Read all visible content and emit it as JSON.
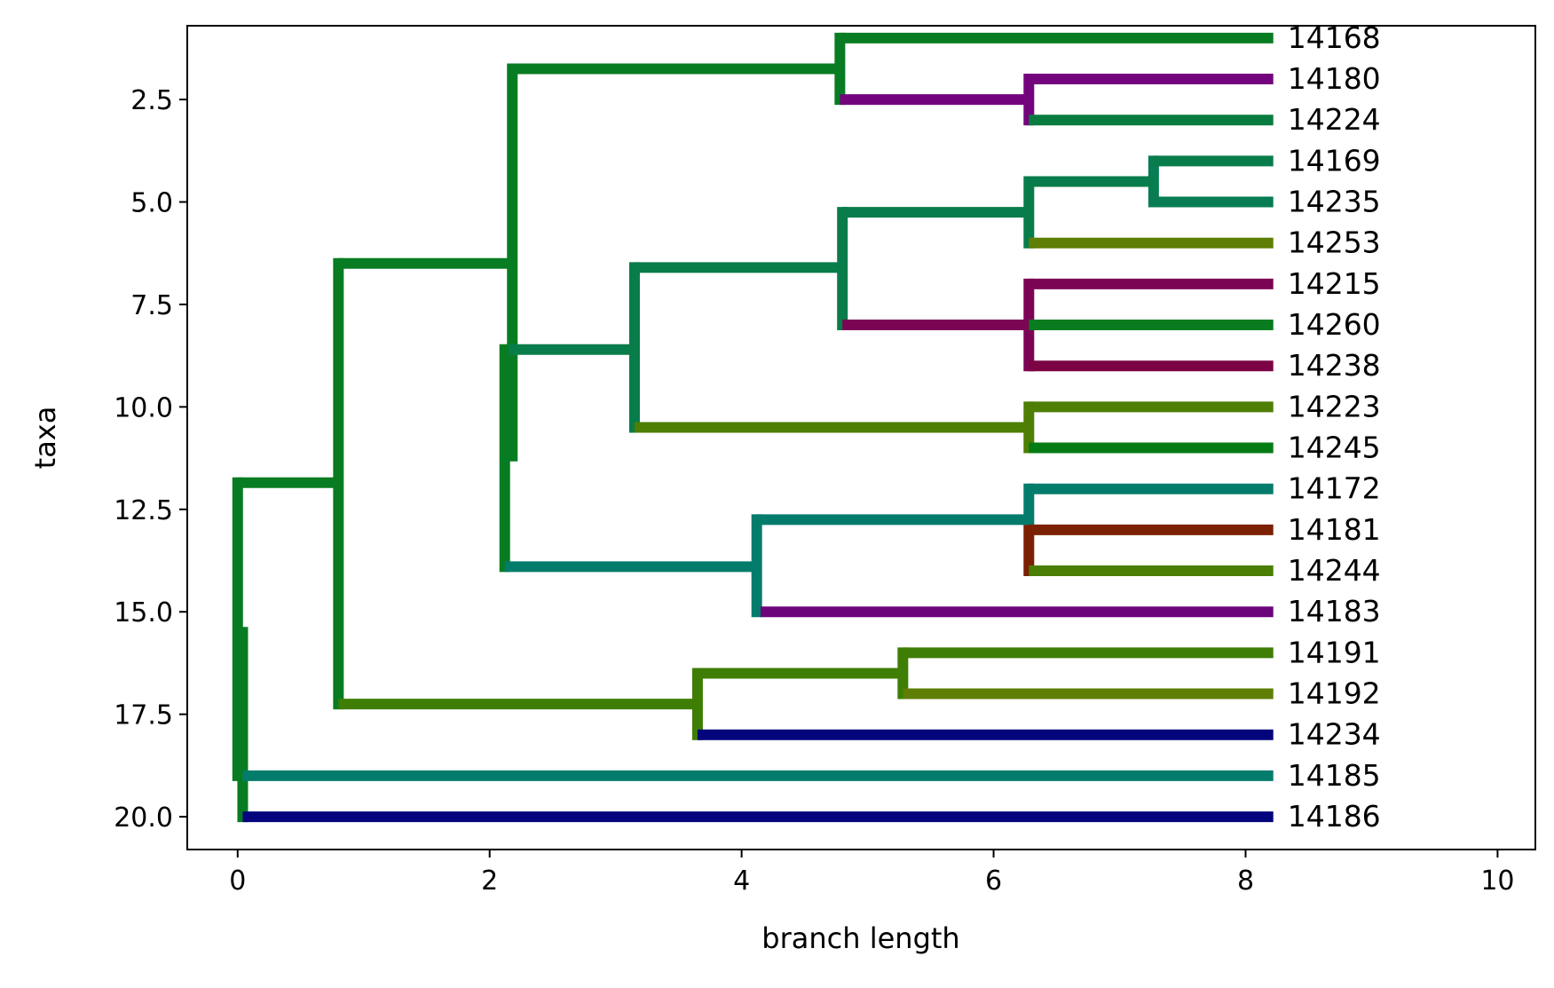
{
  "chart_data": {
    "type": "dendrogram",
    "xlabel": "branch length",
    "ylabel": "taxa",
    "xlim": [
      -0.4,
      10.3
    ],
    "ylim": [
      0.7,
      20.8
    ],
    "y_inverted": true,
    "x_ticks": [
      "0",
      "2",
      "4",
      "6",
      "8",
      "10"
    ],
    "y_ticks": [
      "2.5",
      "5.0",
      "7.5",
      "10.0",
      "12.5",
      "15.0",
      "17.5",
      "20.0"
    ],
    "x_tick_values": [
      0,
      2,
      4,
      6,
      8,
      10
    ],
    "y_tick_values": [
      2.5,
      5.0,
      7.5,
      10.0,
      12.5,
      15.0,
      17.5,
      20.0
    ],
    "leaves": [
      {
        "label": "14168",
        "y": 1
      },
      {
        "label": "14180",
        "y": 2
      },
      {
        "label": "14224",
        "y": 3
      },
      {
        "label": "14169",
        "y": 4
      },
      {
        "label": "14235",
        "y": 5
      },
      {
        "label": "14253",
        "y": 6
      },
      {
        "label": "14215",
        "y": 7
      },
      {
        "label": "14260",
        "y": 8
      },
      {
        "label": "14238",
        "y": 9
      },
      {
        "label": "14223",
        "y": 10
      },
      {
        "label": "14245",
        "y": 11
      },
      {
        "label": "14172",
        "y": 12
      },
      {
        "label": "14181",
        "y": 13
      },
      {
        "label": "14244",
        "y": 14
      },
      {
        "label": "14183",
        "y": 15
      },
      {
        "label": "14191",
        "y": 16
      },
      {
        "label": "14192",
        "y": 17
      },
      {
        "label": "14234",
        "y": 18
      },
      {
        "label": "14185",
        "y": 19
      },
      {
        "label": "14186",
        "y": 20
      }
    ],
    "branches": [
      {
        "x1": 4.78,
        "x2": 8.22,
        "y": 1,
        "color": "#087c22"
      },
      {
        "x1": 6.28,
        "x2": 8.22,
        "y": 2,
        "color": "#74047e"
      },
      {
        "x1": 6.28,
        "x2": 8.22,
        "y": 3,
        "color": "#087c3e"
      },
      {
        "x1": 7.27,
        "x2": 8.22,
        "y": 4,
        "color": "#087c4a"
      },
      {
        "x1": 7.27,
        "x2": 8.22,
        "y": 5,
        "color": "#087c52"
      },
      {
        "x1": 6.28,
        "x2": 8.22,
        "y": 6,
        "color": "#5e7e04"
      },
      {
        "x1": 6.28,
        "x2": 8.22,
        "y": 7,
        "color": "#7c0454"
      },
      {
        "x1": 6.28,
        "x2": 8.22,
        "y": 8,
        "color": "#087c1e"
      },
      {
        "x1": 6.28,
        "x2": 8.22,
        "y": 9,
        "color": "#7c0444"
      },
      {
        "x1": 6.28,
        "x2": 8.22,
        "y": 10,
        "color": "#4e7e04"
      },
      {
        "x1": 6.28,
        "x2": 8.22,
        "y": 11,
        "color": "#047c14"
      },
      {
        "x1": 6.28,
        "x2": 8.22,
        "y": 12,
        "color": "#047c6c"
      },
      {
        "x1": 6.28,
        "x2": 8.22,
        "y": 13,
        "color": "#7c2004"
      },
      {
        "x1": 6.28,
        "x2": 8.22,
        "y": 14,
        "color": "#4a7e04"
      },
      {
        "x1": 4.15,
        "x2": 8.22,
        "y": 15,
        "color": "#6c047c"
      },
      {
        "x1": 5.28,
        "x2": 8.22,
        "y": 16,
        "color": "#3e7e04"
      },
      {
        "x1": 5.28,
        "x2": 8.22,
        "y": 17,
        "color": "#5e7e04"
      },
      {
        "x1": 3.65,
        "x2": 8.22,
        "y": 18,
        "color": "#04047c"
      },
      {
        "x1": 0.04,
        "x2": 8.22,
        "y": 19,
        "color": "#047c6c"
      },
      {
        "x1": 0.04,
        "x2": 8.22,
        "y": 20,
        "color": "#04047c"
      },
      {
        "x1": 4.78,
        "x2": 6.28,
        "y": 2.5,
        "color": "#74047e"
      },
      {
        "x1": 6.28,
        "x2": 7.27,
        "y": 4.5,
        "color": "#087c4a"
      },
      {
        "x1": 4.8,
        "x2": 6.28,
        "y": 5.25,
        "color": "#087c4a"
      },
      {
        "x1": 4.8,
        "x2": 6.28,
        "y": 8.0,
        "color": "#7c0454"
      },
      {
        "x1": 3.15,
        "x2": 4.8,
        "y": 6.6,
        "color": "#087c4a"
      },
      {
        "x1": 3.15,
        "x2": 6.28,
        "y": 10.5,
        "color": "#4e7e04"
      },
      {
        "x1": 2.15,
        "x2": 3.15,
        "y": 8.6,
        "color": "#087c4a"
      },
      {
        "x1": 4.12,
        "x2": 6.28,
        "y": 12.75,
        "color": "#047c6c"
      },
      {
        "x1": 2.12,
        "x2": 4.12,
        "y": 13.9,
        "color": "#047c6c"
      },
      {
        "x1": 5.28,
        "x2": 5.28,
        "y": 16.5,
        "color": "#3e7e04"
      },
      {
        "x1": 3.65,
        "x2": 5.28,
        "y": 16.5,
        "color": "#3e7e04"
      },
      {
        "x1": 0.8,
        "x2": 3.65,
        "y": 17.25,
        "color": "#3e7e04"
      },
      {
        "x1": 2.18,
        "x2": 4.78,
        "y": 1.75,
        "color": "#087c22"
      },
      {
        "x1": 0.8,
        "x2": 2.18,
        "y": 6.5,
        "color": "#087c22"
      },
      {
        "x1": 0.0,
        "x2": 0.8,
        "y": 11.85,
        "color": "#087c22"
      }
    ],
    "connectors": [
      {
        "x": 4.78,
        "y1": 1,
        "y2": 2.5,
        "color": "#087c22"
      },
      {
        "x": 6.28,
        "y1": 2,
        "y2": 3,
        "color": "#74047e"
      },
      {
        "x": 7.27,
        "y1": 4,
        "y2": 5,
        "color": "#087c52"
      },
      {
        "x": 6.28,
        "y1": 4.5,
        "y2": 6,
        "color": "#087c4a"
      },
      {
        "x": 6.28,
        "y1": 7,
        "y2": 9,
        "color": "#7c0454"
      },
      {
        "x": 4.8,
        "y1": 5.25,
        "y2": 8.0,
        "color": "#087c4a"
      },
      {
        "x": 6.28,
        "y1": 10,
        "y2": 11,
        "color": "#4e7e04"
      },
      {
        "x": 3.15,
        "y1": 6.6,
        "y2": 10.5,
        "color": "#087c4a"
      },
      {
        "x": 6.28,
        "y1": 12,
        "y2": 12.75,
        "color": "#047c6c"
      },
      {
        "x": 6.28,
        "y1": 13,
        "y2": 14,
        "color": "#7c2004"
      },
      {
        "x": 4.12,
        "y1": 12.75,
        "y2": 15,
        "color": "#047c6c"
      },
      {
        "x": 2.12,
        "y1": 8.6,
        "y2": 13.9,
        "color": "#087c22"
      },
      {
        "x": 2.18,
        "y1": 1.75,
        "y2": 11.2,
        "color": "#087c22"
      },
      {
        "x": 5.28,
        "y1": 16,
        "y2": 17,
        "color": "#3e7e04"
      },
      {
        "x": 3.65,
        "y1": 16.5,
        "y2": 18,
        "color": "#3e7e04"
      },
      {
        "x": 0.8,
        "y1": 6.5,
        "y2": 17.25,
        "color": "#087c22"
      },
      {
        "x": 0.0,
        "y1": 11.85,
        "y2": 19,
        "color": "#087c22"
      },
      {
        "x": 0.04,
        "y1": 15.5,
        "y2": 20,
        "color": "#087c22"
      }
    ]
  }
}
